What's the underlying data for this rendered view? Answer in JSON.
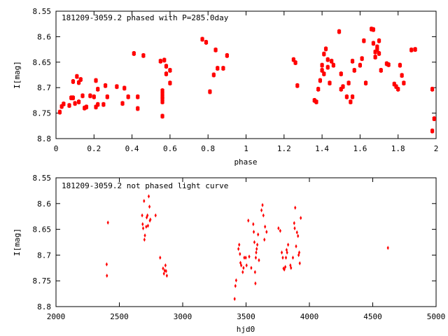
{
  "chart_data": [
    {
      "type": "scatter",
      "title": "181209-3059.2 phased with P=285.0day",
      "xlabel": "phase",
      "ylabel": "I[mag]",
      "xlim": [
        0,
        2
      ],
      "ylim": [
        8.8,
        8.55
      ],
      "y_inverted": true,
      "x_ticks": [
        0,
        0.2,
        0.4,
        0.6,
        0.8,
        1,
        1.2,
        1.4,
        1.6,
        1.8,
        2
      ],
      "x_tick_labels": [
        "0",
        "0.2",
        "0.4",
        "0.6",
        "0.8",
        "1",
        "1.2",
        "1.4",
        "1.6",
        "1.8",
        "2"
      ],
      "y_ticks": [
        8.55,
        8.6,
        8.65,
        8.7,
        8.75,
        8.8
      ],
      "y_tick_labels": [
        "8.55",
        "8.6",
        "8.65",
        "8.7",
        "8.75",
        "8.8"
      ],
      "grid": false,
      "marker_color": "#ff0000",
      "points": [
        [
          0.02,
          8.748
        ],
        [
          0.03,
          8.737
        ],
        [
          0.04,
          8.732
        ],
        [
          0.07,
          8.735
        ],
        [
          0.08,
          8.72
        ],
        [
          0.09,
          8.72
        ],
        [
          0.09,
          8.688
        ],
        [
          0.1,
          8.731
        ],
        [
          0.11,
          8.678
        ],
        [
          0.12,
          8.728
        ],
        [
          0.12,
          8.69
        ],
        [
          0.13,
          8.684
        ],
        [
          0.14,
          8.716
        ],
        [
          0.15,
          8.74
        ],
        [
          0.16,
          8.738
        ],
        [
          0.18,
          8.716
        ],
        [
          0.2,
          8.718
        ],
        [
          0.21,
          8.686
        ],
        [
          0.21,
          8.738
        ],
        [
          0.22,
          8.703
        ],
        [
          0.22,
          8.733
        ],
        [
          0.25,
          8.733
        ],
        [
          0.26,
          8.696
        ],
        [
          0.27,
          8.718
        ],
        [
          0.32,
          8.698
        ],
        [
          0.35,
          8.731
        ],
        [
          0.36,
          8.701
        ],
        [
          0.38,
          8.718
        ],
        [
          0.41,
          8.633
        ],
        [
          0.43,
          8.741
        ],
        [
          0.43,
          8.718
        ],
        [
          0.46,
          8.637
        ],
        [
          0.55,
          8.648
        ],
        [
          0.56,
          8.706
        ],
        [
          0.56,
          8.712
        ],
        [
          0.56,
          8.718
        ],
        [
          0.56,
          8.722
        ],
        [
          0.56,
          8.728
        ],
        [
          0.56,
          8.756
        ],
        [
          0.57,
          8.646
        ],
        [
          0.58,
          8.673
        ],
        [
          0.58,
          8.658
        ],
        [
          0.6,
          8.666
        ],
        [
          0.6,
          8.691
        ],
        [
          0.77,
          8.605
        ],
        [
          0.79,
          8.611
        ],
        [
          0.81,
          8.708
        ],
        [
          0.83,
          8.675
        ],
        [
          0.84,
          8.626
        ],
        [
          0.85,
          8.662
        ],
        [
          0.88,
          8.662
        ],
        [
          0.9,
          8.637
        ],
        [
          1.25,
          8.645
        ],
        [
          1.26,
          8.651
        ],
        [
          1.27,
          8.696
        ],
        [
          1.36,
          8.725
        ],
        [
          1.37,
          8.728
        ],
        [
          1.38,
          8.703
        ],
        [
          1.39,
          8.686
        ],
        [
          1.4,
          8.666
        ],
        [
          1.4,
          8.656
        ],
        [
          1.41,
          8.634
        ],
        [
          1.41,
          8.673
        ],
        [
          1.42,
          8.624
        ],
        [
          1.43,
          8.645
        ],
        [
          1.43,
          8.66
        ],
        [
          1.44,
          8.691
        ],
        [
          1.45,
          8.648
        ],
        [
          1.46,
          8.656
        ],
        [
          1.49,
          8.59
        ],
        [
          1.5,
          8.673
        ],
        [
          1.5,
          8.703
        ],
        [
          1.51,
          8.698
        ],
        [
          1.53,
          8.718
        ],
        [
          1.54,
          8.691
        ],
        [
          1.55,
          8.728
        ],
        [
          1.56,
          8.648
        ],
        [
          1.56,
          8.718
        ],
        [
          1.57,
          8.666
        ],
        [
          1.6,
          8.656
        ],
        [
          1.61,
          8.643
        ],
        [
          1.62,
          8.608
        ],
        [
          1.63,
          8.691
        ],
        [
          1.66,
          8.585
        ],
        [
          1.67,
          8.586
        ],
        [
          1.67,
          8.613
        ],
        [
          1.68,
          8.63
        ],
        [
          1.68,
          8.64
        ],
        [
          1.69,
          8.62
        ],
        [
          1.69,
          8.625
        ],
        [
          1.7,
          8.633
        ],
        [
          1.7,
          8.608
        ],
        [
          1.71,
          8.666
        ],
        [
          1.74,
          8.653
        ],
        [
          1.75,
          8.655
        ],
        [
          1.78,
          8.693
        ],
        [
          1.79,
          8.698
        ],
        [
          1.8,
          8.703
        ],
        [
          1.81,
          8.656
        ],
        [
          1.82,
          8.676
        ],
        [
          1.83,
          8.691
        ],
        [
          1.87,
          8.626
        ],
        [
          1.89,
          8.625
        ],
        [
          1.98,
          8.785
        ],
        [
          1.98,
          8.703
        ],
        [
          1.99,
          8.761
        ]
      ]
    },
    {
      "type": "scatter",
      "title": "181209-3059.2 not phased light curve",
      "xlabel": "hjd0",
      "ylabel": "I[mag]",
      "xlim": [
        2000,
        5000
      ],
      "ylim": [
        8.8,
        8.55
      ],
      "y_inverted": true,
      "x_ticks": [
        2000,
        2500,
        3000,
        3500,
        4000,
        4500,
        5000
      ],
      "x_tick_labels": [
        "2000",
        "2500",
        "3000",
        "3500",
        "4000",
        "4500",
        "5000"
      ],
      "y_ticks": [
        8.55,
        8.6,
        8.65,
        8.7,
        8.75,
        8.8
      ],
      "y_tick_labels": [
        "8.55",
        "8.6",
        "8.65",
        "8.7",
        "8.75",
        "8.8"
      ],
      "grid": false,
      "marker_color": "#ff0000",
      "points": [
        [
          2400,
          8.718
        ],
        [
          2402,
          8.74
        ],
        [
          2410,
          8.637
        ],
        [
          2680,
          8.623
        ],
        [
          2684,
          8.64
        ],
        [
          2688,
          8.648
        ],
        [
          2695,
          8.595
        ],
        [
          2698,
          8.67
        ],
        [
          2702,
          8.662
        ],
        [
          2712,
          8.645
        ],
        [
          2716,
          8.627
        ],
        [
          2722,
          8.623
        ],
        [
          2726,
          8.643
        ],
        [
          2732,
          8.586
        ],
        [
          2738,
          8.606
        ],
        [
          2741,
          8.633
        ],
        [
          2745,
          8.631
        ],
        [
          2786,
          8.623
        ],
        [
          2822,
          8.705
        ],
        [
          2845,
          8.726
        ],
        [
          2852,
          8.736
        ],
        [
          2858,
          8.73
        ],
        [
          2864,
          8.72
        ],
        [
          2869,
          8.731
        ],
        [
          2875,
          8.74
        ],
        [
          3410,
          8.785
        ],
        [
          3416,
          8.76
        ],
        [
          3422,
          8.749
        ],
        [
          3440,
          8.688
        ],
        [
          3446,
          8.68
        ],
        [
          3452,
          8.698
        ],
        [
          3456,
          8.715
        ],
        [
          3462,
          8.72
        ],
        [
          3474,
          8.733
        ],
        [
          3480,
          8.725
        ],
        [
          3486,
          8.705
        ],
        [
          3498,
          8.705
        ],
        [
          3504,
          8.72
        ],
        [
          3518,
          8.633
        ],
        [
          3525,
          8.703
        ],
        [
          3541,
          8.725
        ],
        [
          3557,
          8.64
        ],
        [
          3561,
          8.655
        ],
        [
          3566,
          8.675
        ],
        [
          3571,
          8.733
        ],
        [
          3574,
          8.755
        ],
        [
          3577,
          8.705
        ],
        [
          3580,
          8.695
        ],
        [
          3584,
          8.688
        ],
        [
          3589,
          8.68
        ],
        [
          3595,
          8.66
        ],
        [
          3602,
          8.71
        ],
        [
          3622,
          8.613
        ],
        [
          3630,
          8.603
        ],
        [
          3637,
          8.623
        ],
        [
          3645,
          8.67
        ],
        [
          3650,
          8.645
        ],
        [
          3662,
          8.655
        ],
        [
          3756,
          8.648
        ],
        [
          3770,
          8.653
        ],
        [
          3782,
          8.695
        ],
        [
          3790,
          8.705
        ],
        [
          3796,
          8.726
        ],
        [
          3802,
          8.728
        ],
        [
          3810,
          8.723
        ],
        [
          3815,
          8.705
        ],
        [
          3820,
          8.69
        ],
        [
          3824,
          8.695
        ],
        [
          3832,
          8.68
        ],
        [
          3850,
          8.72
        ],
        [
          3855,
          8.725
        ],
        [
          3870,
          8.705
        ],
        [
          3880,
          8.638
        ],
        [
          3884,
          8.648
        ],
        [
          3888,
          8.608
        ],
        [
          3895,
          8.683
        ],
        [
          3902,
          8.656
        ],
        [
          3910,
          8.663
        ],
        [
          3915,
          8.7
        ],
        [
          3920,
          8.695
        ],
        [
          3924,
          8.716
        ],
        [
          3932,
          8.628
        ],
        [
          4620,
          8.686
        ]
      ]
    }
  ]
}
